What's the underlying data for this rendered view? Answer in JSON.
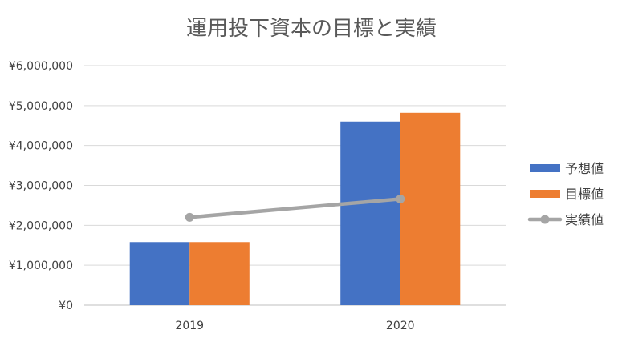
{
  "chart_data": {
    "type": "bar",
    "title": "運用投下資本の目標と実績",
    "categories": [
      "2019",
      "2020"
    ],
    "series": [
      {
        "name": "予想値",
        "kind": "bar",
        "color": "#4472C4",
        "values": [
          1580000,
          4600000
        ]
      },
      {
        "name": "目標値",
        "kind": "bar",
        "color": "#ED7D31",
        "values": [
          1580000,
          4820000
        ]
      },
      {
        "name": "実績値",
        "kind": "line",
        "color": "#A5A5A5",
        "values": [
          2200000,
          2660000
        ]
      }
    ],
    "ylim": [
      0,
      6000000
    ],
    "yticks": [
      0,
      1000000,
      2000000,
      3000000,
      4000000,
      5000000,
      6000000
    ],
    "ytick_labels": [
      "¥0",
      "¥1,000,000",
      "¥2,000,000",
      "¥3,000,000",
      "¥4,000,000",
      "¥5,000,000",
      "¥6,000,000"
    ],
    "grid": true,
    "legend_position": "right"
  }
}
